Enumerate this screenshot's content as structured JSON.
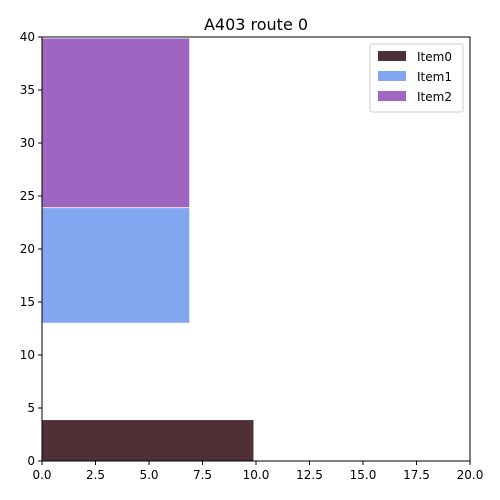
{
  "chart_data": {
    "type": "bar",
    "title": "A403 route 0",
    "xlabel": "",
    "ylabel": "",
    "xlim": [
      0,
      20
    ],
    "ylim": [
      0,
      40
    ],
    "x_ticks": [
      0,
      2.5,
      5,
      7.5,
      10,
      12.5,
      15,
      17.5,
      20
    ],
    "x_tick_labels": [
      "0.0",
      "2.5",
      "5.0",
      "7.5",
      "10.0",
      "12.5",
      "15.0",
      "17.5",
      "20.0"
    ],
    "y_ticks": [
      0,
      5,
      10,
      15,
      20,
      25,
      30,
      35,
      40
    ],
    "y_tick_labels": [
      "0",
      "5",
      "10",
      "15",
      "20",
      "25",
      "30",
      "35",
      "40"
    ],
    "grid": false,
    "legend_position": "top-right",
    "series": [
      {
        "name": "Item0",
        "color": "#4f3037",
        "x_start": 0,
        "x_end": 9.9,
        "y_start": 0,
        "y_end": 3.9
      },
      {
        "name": "Item1",
        "color": "#82a6f0",
        "x_start": 0,
        "x_end": 6.9,
        "y_start": 13,
        "y_end": 23.9
      },
      {
        "name": "Item2",
        "color": "#9f66c1",
        "x_start": 0,
        "x_end": 6.9,
        "y_start": 23.9,
        "y_end": 39.9
      }
    ]
  }
}
